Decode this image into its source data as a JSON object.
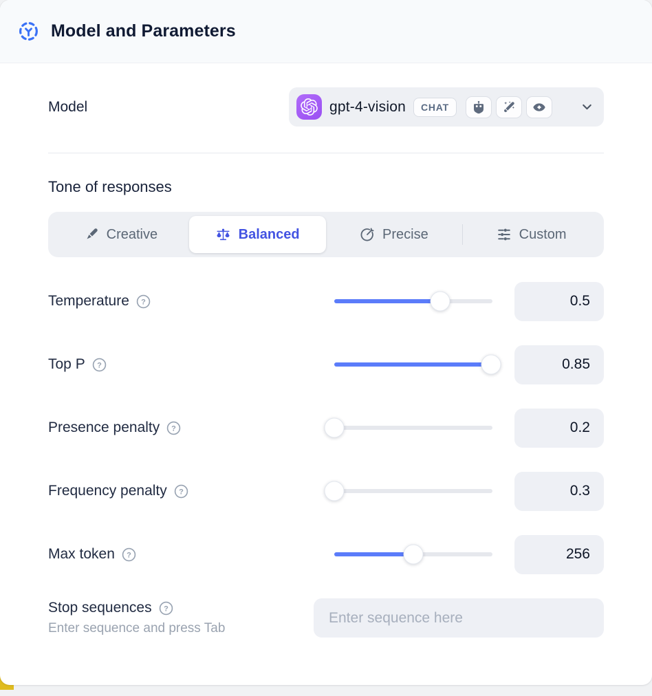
{
  "header": {
    "title": "Model and Parameters"
  },
  "model_row": {
    "label": "Model",
    "model_name": "gpt-4-vision",
    "type_badge": "CHAT",
    "capability_icons": [
      "robot",
      "magic-wand",
      "eye"
    ]
  },
  "tone": {
    "heading": "Tone of responses",
    "options": [
      {
        "label": "Creative",
        "icon": "paintbrush",
        "selected": false
      },
      {
        "label": "Balanced",
        "icon": "balance-scale",
        "selected": true
      },
      {
        "label": "Precise",
        "icon": "target-dart",
        "selected": false
      },
      {
        "label": "Custom",
        "icon": "sliders",
        "selected": false
      }
    ]
  },
  "parameters": [
    {
      "label": "Temperature",
      "value": "0.5",
      "fill_pct": 67
    },
    {
      "label": "Top P",
      "value": "0.85",
      "fill_pct": 99
    },
    {
      "label": "Presence penalty",
      "value": "0.2",
      "fill_pct": 0
    },
    {
      "label": "Frequency penalty",
      "value": "0.3",
      "fill_pct": 0
    },
    {
      "label": "Max token",
      "value": "256",
      "fill_pct": 50
    }
  ],
  "stop_sequences": {
    "label": "Stop sequences",
    "helper": "Enter sequence and press Tab",
    "placeholder": "Enter sequence here"
  },
  "colors": {
    "accent_blue": "#5b7cfa",
    "selected_indigo": "#4353e2",
    "logo_purple": "#9a4ff2",
    "icon_gray": "#5f6b7e",
    "header_bg": "#f8fafc"
  }
}
